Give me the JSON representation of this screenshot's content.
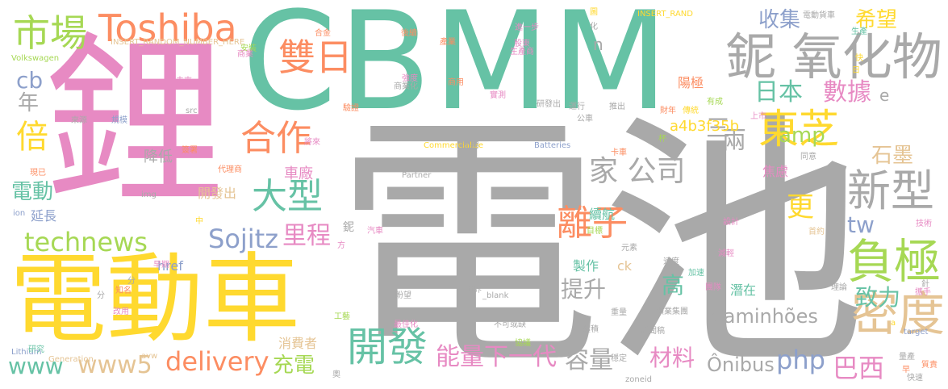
{
  "palette": {
    "gray": "#a9a9a9",
    "green": "#66c2a5",
    "yellow": "#ffd92f",
    "pink": "#e78ac3",
    "orange": "#fc8d62",
    "blue": "#8da0cb",
    "lime": "#a6d854",
    "tan": "#e5c494"
  },
  "words": [
    {
      "text": "電池",
      "color": "gray"
    },
    {
      "text": "鋰",
      "color": "pink"
    },
    {
      "text": "CBMM",
      "color": "green"
    },
    {
      "text": "電動車",
      "color": "yellow"
    },
    {
      "text": "鈮 氧化物",
      "color": "gray"
    },
    {
      "text": "Toshiba",
      "color": "orange"
    },
    {
      "text": "雙日",
      "color": "orange"
    },
    {
      "text": "市場",
      "color": "lime"
    },
    {
      "text": "東芝",
      "color": "yellow"
    },
    {
      "text": "開發",
      "color": "green"
    },
    {
      "text": "負極",
      "color": "lime"
    },
    {
      "text": "密度",
      "color": "tan"
    },
    {
      "text": "合作",
      "color": "orange"
    },
    {
      "text": "大型",
      "color": "green"
    },
    {
      "text": "新型",
      "color": "gray"
    },
    {
      "text": "離子",
      "color": "orange"
    },
    {
      "text": "家 公司",
      "color": "gray"
    },
    {
      "text": "能量下一代",
      "color": "pink"
    },
    {
      "text": "容量",
      "color": "gray"
    },
    {
      "text": "delivery",
      "color": "orange"
    },
    {
      "text": "technews",
      "color": "lime"
    },
    {
      "text": "Sojitz",
      "color": "blue"
    },
    {
      "text": "www5",
      "color": "tan"
    },
    {
      "text": "www",
      "color": "green"
    },
    {
      "text": "Caminhões",
      "color": "gray"
    },
    {
      "text": "Ônibus",
      "color": "gray"
    },
    {
      "text": "php",
      "color": "blue"
    },
    {
      "text": "巴西",
      "color": "pink"
    },
    {
      "text": "收集",
      "color": "blue"
    },
    {
      "text": "希望",
      "color": "yellow"
    },
    {
      "text": "日本",
      "color": "green"
    },
    {
      "text": "數據",
      "color": "pink"
    },
    {
      "text": "倍",
      "color": "yellow"
    },
    {
      "text": "cb",
      "color": "blue"
    },
    {
      "text": "年",
      "color": "gray"
    },
    {
      "text": "amp",
      "color": "lime"
    },
    {
      "text": "三",
      "color": "gray"
    },
    {
      "text": "兩",
      "color": "gray"
    },
    {
      "text": "石墨",
      "color": "tan"
    },
    {
      "text": "電動",
      "color": "green"
    },
    {
      "text": "更",
      "color": "yellow"
    },
    {
      "text": "tw",
      "color": "blue"
    },
    {
      "text": "里程",
      "color": "pink"
    },
    {
      "text": "提升",
      "color": "gray"
    },
    {
      "text": "高",
      "color": "green"
    },
    {
      "text": "致力",
      "color": "green"
    },
    {
      "text": "材料",
      "color": "pink"
    },
    {
      "text": "充電",
      "color": "lime"
    },
    {
      "text": "a4b3f35b",
      "color": "yellow"
    },
    {
      "text": "e",
      "color": "gray"
    },
    {
      "text": "陽極",
      "color": "orange"
    },
    {
      "text": "焦慮",
      "color": "pink"
    },
    {
      "text": "車廠",
      "color": "pink"
    },
    {
      "text": "降低",
      "color": "gray"
    },
    {
      "text": "續航",
      "color": "green"
    },
    {
      "text": "製作",
      "color": "green"
    },
    {
      "text": "開發出",
      "color": "tan"
    },
    {
      "text": "潛在",
      "color": "green"
    },
    {
      "text": "消費者",
      "color": "tan"
    },
    {
      "text": "延長",
      "color": "blue"
    },
    {
      "text": "href",
      "color": "blue"
    },
    {
      "text": "ck",
      "color": "tan"
    },
    {
      "text": "n",
      "color": "gray"
    },
    {
      "text": "鈮",
      "color": "gray"
    },
    {
      "text": "Commercialize",
      "color": "yellow"
    },
    {
      "text": "Batteries",
      "color": "blue"
    },
    {
      "text": "INSERT_RANDOM_NUMBER_HERE",
      "color": "tan"
    },
    {
      "text": "INSERT_RAND",
      "color": "yellow"
    },
    {
      "text": "Volkswagen",
      "color": "lime"
    },
    {
      "text": "Lithium",
      "color": "blue"
    },
    {
      "text": "Generation",
      "color": "tan"
    },
    {
      "text": "Partner",
      "color": "gray"
    },
    {
      "text": "_blank",
      "color": "gray"
    },
    {
      "text": "zoneid",
      "color": "gray"
    },
    {
      "text": "target",
      "color": "blue"
    },
    {
      "text": "src",
      "color": "gray"
    },
    {
      "text": "img",
      "color": "gray"
    },
    {
      "text": "ion",
      "color": "blue"
    },
    {
      "text": "avw",
      "color": "tan"
    },
    {
      "text": "來源",
      "color": "gray"
    },
    {
      "text": "提供",
      "color": "pink"
    },
    {
      "text": "規模",
      "color": "blue"
    },
    {
      "text": "未來",
      "color": "pink"
    },
    {
      "text": "安裝",
      "color": "lime"
    },
    {
      "text": "合金",
      "color": "orange"
    },
    {
      "text": "後續",
      "color": "orange"
    },
    {
      "text": "產業",
      "color": "orange"
    },
    {
      "text": "股東",
      "color": "pink"
    },
    {
      "text": "生產商",
      "color": "pink"
    },
    {
      "text": "電動貨車",
      "color": "gray"
    },
    {
      "text": "進一步",
      "color": "pink"
    },
    {
      "text": "生產",
      "color": "green"
    },
    {
      "text": "化",
      "color": "gray"
    },
    {
      "text": "強度",
      "color": "pink"
    },
    {
      "text": "商業化",
      "color": "gray"
    },
    {
      "text": "商用",
      "color": "orange"
    },
    {
      "text": "實測",
      "color": "pink"
    },
    {
      "text": "研發出",
      "color": "gray"
    },
    {
      "text": "運行",
      "color": "gray"
    },
    {
      "text": "推出",
      "color": "gray"
    },
    {
      "text": "財年",
      "color": "orange"
    },
    {
      "text": "有成",
      "color": "lime"
    },
    {
      "text": "上市",
      "color": "pink"
    },
    {
      "text": "公車",
      "color": "gray"
    },
    {
      "text": "不用",
      "color": "gray"
    },
    {
      "text": "將來",
      "color": "pink"
    },
    {
      "text": "簽署",
      "color": "orange"
    },
    {
      "text": "代理商",
      "color": "orange"
    },
    {
      "text": "現已",
      "color": "orange"
    },
    {
      "text": "驗證",
      "color": "orange"
    },
    {
      "text": "卡車",
      "color": "orange"
    },
    {
      "text": "同意",
      "color": "gray"
    },
    {
      "text": "設計",
      "color": "pink"
    },
    {
      "text": "技術",
      "color": "pink"
    },
    {
      "text": "首約",
      "color": "tan"
    },
    {
      "text": "減輕",
      "color": "pink"
    },
    {
      "text": "加速",
      "color": "green"
    },
    {
      "text": "團隊",
      "color": "pink"
    },
    {
      "text": "理論",
      "color": "gray"
    },
    {
      "text": "攜手",
      "color": "pink"
    },
    {
      "text": "速度",
      "color": "gray"
    },
    {
      "text": "元素",
      "color": "gray"
    },
    {
      "text": "目標",
      "color": "lime"
    },
    {
      "text": "汽車",
      "color": "pink"
    },
    {
      "text": "工藝",
      "color": "lime"
    },
    {
      "text": "改用",
      "color": "pink"
    },
    {
      "text": "知名",
      "color": "orange"
    },
    {
      "text": "早期",
      "color": "pink"
    },
    {
      "text": "分",
      "color": "gray"
    },
    {
      "text": "中",
      "color": "yellow"
    },
    {
      "text": "方",
      "color": "pink"
    },
    {
      "text": "盼望",
      "color": "gray"
    },
    {
      "text": "世界",
      "color": "gray"
    },
    {
      "text": "重量",
      "color": "gray"
    },
    {
      "text": "礦業集團",
      "color": "gray"
    },
    {
      "text": "最佳化",
      "color": "pink"
    },
    {
      "text": "不可或缺",
      "color": "gray"
    },
    {
      "text": "體積",
      "color": "gray"
    },
    {
      "text": "協議",
      "color": "lime"
    },
    {
      "text": "新聞稿",
      "color": "gray"
    },
    {
      "text": "穩定",
      "color": "gray"
    },
    {
      "text": "研究",
      "color": "green"
    },
    {
      "text": "奧",
      "color": "gray"
    },
    {
      "text": "量產",
      "color": "gray"
    },
    {
      "text": "快速",
      "color": "gray"
    },
    {
      "text": "質責",
      "color": "orange"
    },
    {
      "text": "早",
      "color": "orange"
    },
    {
      "text": "商業",
      "color": "pink"
    },
    {
      "text": "圖",
      "color": "yellow"
    },
    {
      "text": "傳統",
      "color": "yellow"
    },
    {
      "text": "杯",
      "color": "lime"
    },
    {
      "text": "針",
      "color": "gray"
    },
    {
      "text": "日",
      "color": "yellow"
    },
    {
      "text": "快",
      "color": "yellow"
    },
    {
      "text": "a",
      "color": "yellow"
    },
    {
      "text": "分",
      "color": "gray"
    }
  ]
}
